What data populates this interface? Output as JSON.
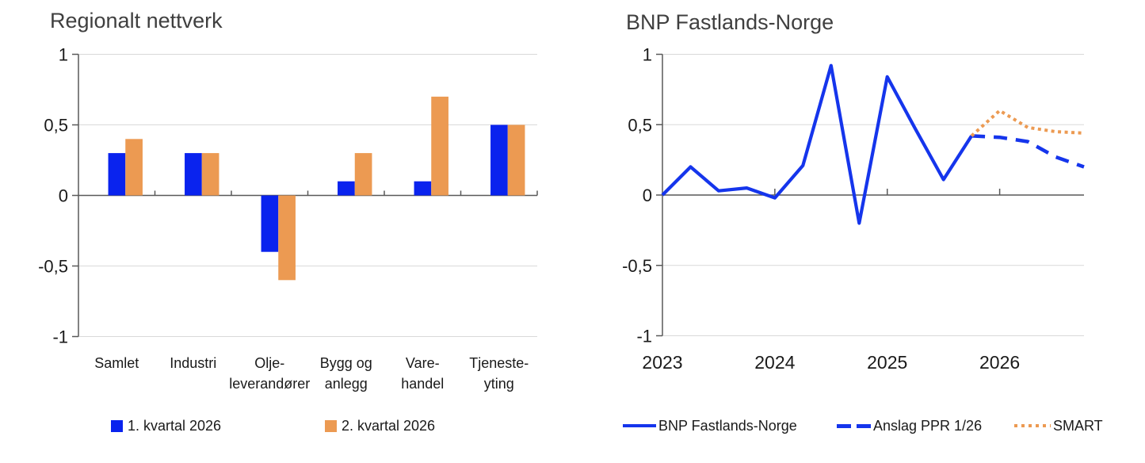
{
  "page": {
    "background": "#ffffff"
  },
  "colors": {
    "bar_blue": "#0a23ee",
    "line_blue": "#1535ec",
    "orange": "#ec9a52",
    "gridline": "#d9d9d9",
    "axis": "#595959",
    "text": "#1a1a1a",
    "title": "#3f3f3f"
  },
  "chart_data": [
    {
      "type": "bar",
      "title": "Regionalt nettverk",
      "categories": [
        "Samlet",
        "Industri",
        "Olje-\nleverandører",
        "Bygg og\nanlegg",
        "Vare-\nhandel",
        "Tjeneste-\nyting"
      ],
      "series": [
        {
          "name": "1. kvartal 2026",
          "color": "#0a23ee",
          "values": [
            0.3,
            0.3,
            -0.4,
            0.1,
            0.1,
            0.5
          ]
        },
        {
          "name": "2. kvartal 2026",
          "color": "#ec9a52",
          "values": [
            0.4,
            0.3,
            -0.6,
            0.3,
            0.7,
            0.5
          ]
        }
      ],
      "ylim": [
        -1,
        1
      ],
      "y_ticks": [
        {
          "value": 1,
          "label": "1"
        },
        {
          "value": 0.5,
          "label": "0,5"
        },
        {
          "value": 0,
          "label": "0"
        },
        {
          "value": -0.5,
          "label": "-0,5"
        },
        {
          "value": -1,
          "label": "-1"
        }
      ],
      "grid": true,
      "legend_position": "bottom"
    },
    {
      "type": "line",
      "title": "BNP Fastlands-Norge",
      "x_unit": "quarter",
      "xlim_quarters": [
        0,
        15
      ],
      "x_ticks": [
        {
          "quarter": 0,
          "label": "2023"
        },
        {
          "quarter": 4,
          "label": "2024"
        },
        {
          "quarter": 8,
          "label": "2025"
        },
        {
          "quarter": 12,
          "label": "2026"
        }
      ],
      "ylim": [
        -1,
        1
      ],
      "y_ticks": [
        {
          "value": 1,
          "label": "1"
        },
        {
          "value": 0.5,
          "label": "0,5"
        },
        {
          "value": 0,
          "label": "0"
        },
        {
          "value": -0.5,
          "label": "-0,5"
        },
        {
          "value": -1,
          "label": "-1"
        }
      ],
      "series": [
        {
          "name": "BNP Fastlands-Norge",
          "style": "solid",
          "color": "#1535ec",
          "start_quarter": 0,
          "values": [
            0,
            0.2,
            0.03,
            0.05,
            -0.02,
            0.21,
            0.92,
            -0.2,
            0.84,
            0.47,
            0.11,
            0.42
          ]
        },
        {
          "name": "Anslag PPR 1/26",
          "style": "dashed",
          "color": "#1535ec",
          "start_quarter": 11,
          "values": [
            0.42,
            0.41,
            0.38,
            0.27,
            0.2
          ]
        },
        {
          "name": "SMART",
          "style": "dotted",
          "color": "#ec9a52",
          "start_quarter": 11,
          "values": [
            0.42,
            0.6,
            0.48,
            0.45,
            0.44
          ]
        }
      ],
      "grid": true,
      "legend_position": "bottom"
    }
  ]
}
